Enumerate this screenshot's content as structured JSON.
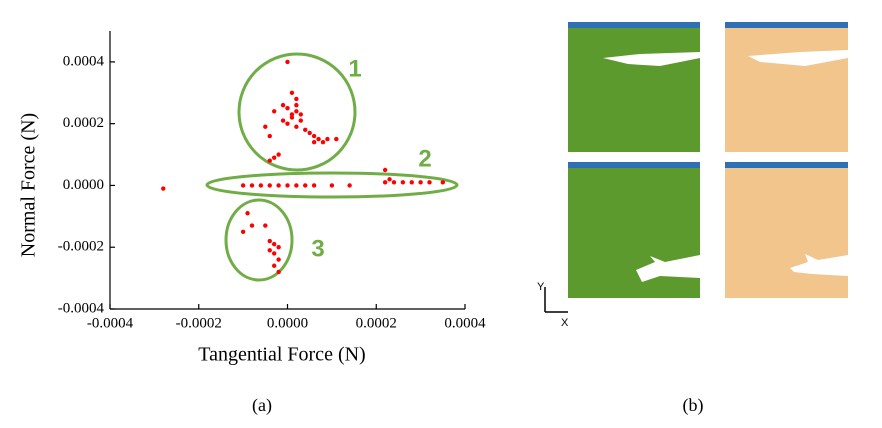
{
  "chart_data": {
    "type": "scatter",
    "x_label": "Tangential Force (N)",
    "y_label": "Normal Force (N)",
    "annotations": [
      "1",
      "2",
      "3"
    ],
    "panel_labels": [
      "(a)",
      "(b)"
    ],
    "axis_labels_b": [
      "Y",
      "X"
    ],
    "color": "#ff0000",
    "xlim": [
      -0.0004,
      0.0004
    ],
    "ylim": [
      -0.0004,
      0.0005
    ],
    "xticks": [
      -0.0004,
      -0.0002,
      {
        "value": 0,
        "label": "0.0000"
      },
      0.0002,
      0.0004
    ],
    "yticks": [
      -0.0004,
      -0.0002,
      {
        "value": 0,
        "label": "0.0000"
      },
      0.0002,
      0.0004
    ],
    "x": [
      0.0,
      1e-05,
      2e-05,
      -1e-05,
      0.0,
      2e-05,
      3e-05,
      1e-05,
      -1e-05,
      0.0,
      2e-05,
      4e-05,
      5e-05,
      6e-05,
      7e-05,
      8e-05,
      9e-05,
      6e-05,
      3e-05,
      -3e-05,
      -5e-05,
      -4e-05,
      0.00011,
      -3e-05,
      -4e-05,
      -2e-05,
      1e-05,
      2e-05,
      -0.00028,
      -0.0001,
      -8e-05,
      -6e-05,
      -4e-05,
      -2e-05,
      0.0,
      2e-05,
      4e-05,
      6e-05,
      0.0001,
      0.00014,
      0.00022,
      0.00022,
      0.00024,
      0.00026,
      0.00028,
      0.0003,
      0.00032,
      0.00035,
      0.00023,
      -9e-05,
      -8e-05,
      -0.0001,
      -5e-05,
      -3e-05,
      -2e-05,
      -3e-05,
      -4e-05,
      -2e-05,
      -3e-05,
      -2e-05,
      -4e-05
    ],
    "values": [
      0.0004,
      0.0003,
      0.00028,
      0.00026,
      0.00025,
      0.00024,
      0.00023,
      0.00022,
      0.00021,
      0.0002,
      0.00019,
      0.00018,
      0.00017,
      0.00016,
      0.00015,
      0.00014,
      0.00015,
      0.00014,
      0.00021,
      0.00024,
      0.00019,
      0.00016,
      0.00015,
      9e-05,
      8e-05,
      0.0001,
      0.00023,
      0.00026,
      -1e-05,
      0.0,
      0.0,
      0.0,
      0.0,
      0.0,
      0.0,
      0.0,
      0.0,
      0.0,
      0.0,
      0.0,
      5e-05,
      1e-05,
      1e-05,
      1e-05,
      1e-05,
      1e-05,
      1e-05,
      1e-05,
      2e-05,
      -9e-05,
      -0.00013,
      -0.00015,
      -0.00013,
      -0.00019,
      -0.0002,
      -0.00022,
      -0.00021,
      -0.00024,
      -0.00026,
      -0.00028,
      -0.00018
    ]
  }
}
